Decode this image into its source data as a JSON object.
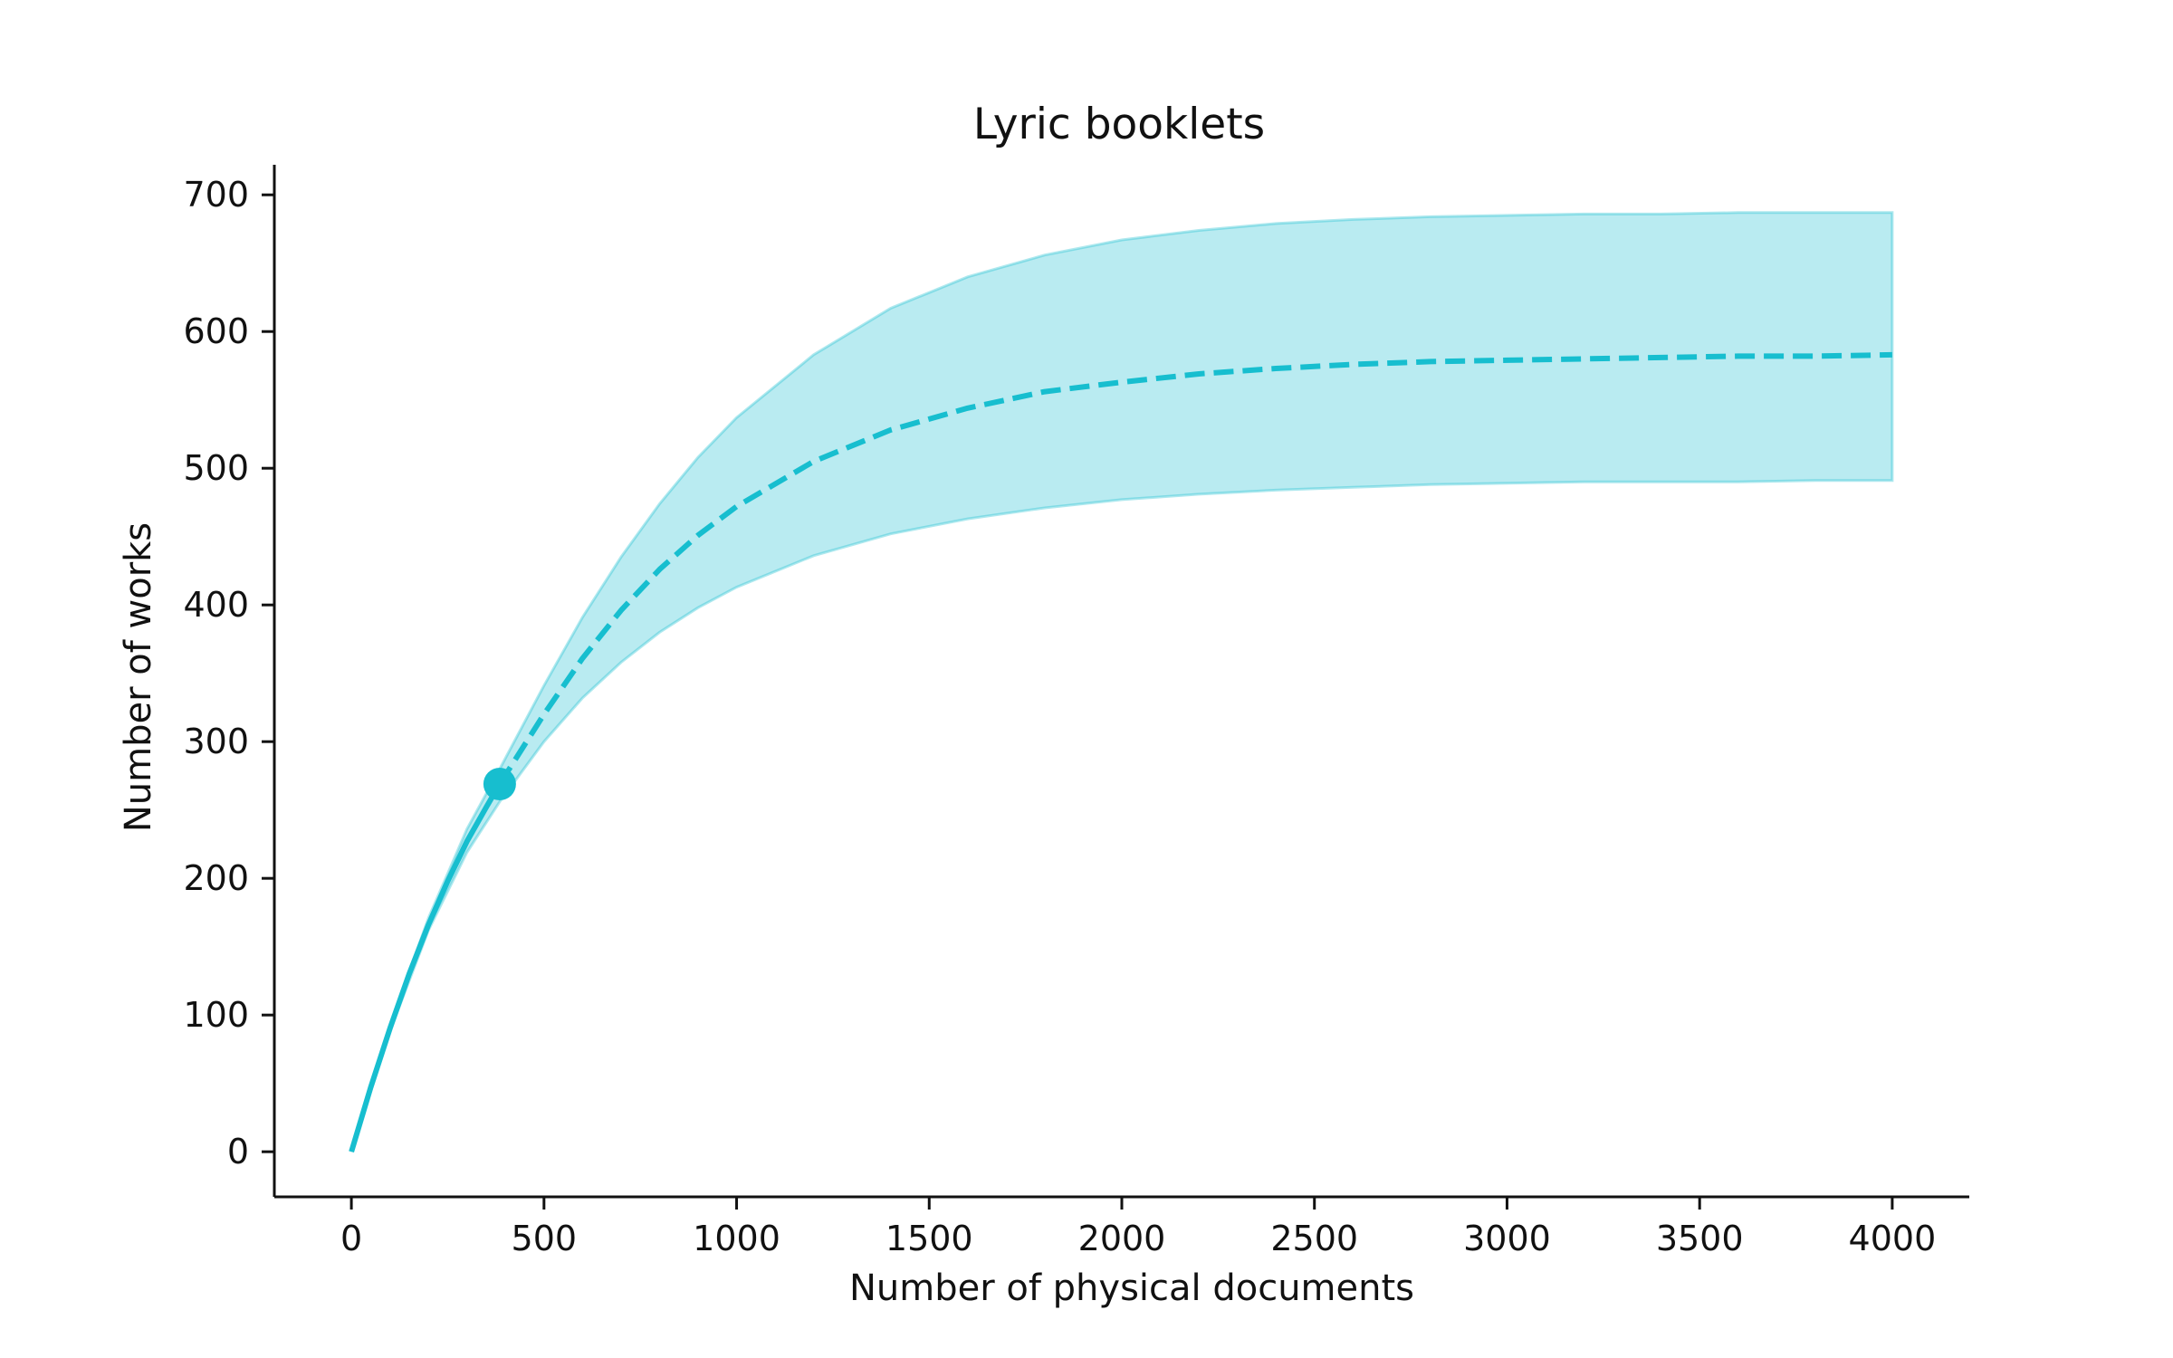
{
  "chart_data": {
    "type": "line",
    "title": "Lyric booklets",
    "xlabel": "Number of physical documents",
    "ylabel": "Number of works",
    "xlim": [
      -200,
      4200
    ],
    "ylim": [
      -33,
      722
    ],
    "xticks": [
      0,
      500,
      1000,
      1500,
      2000,
      2500,
      3000,
      3500,
      4000
    ],
    "yticks": [
      0,
      100,
      200,
      300,
      400,
      500,
      600,
      700
    ],
    "xtick_labels": [
      "0",
      "500",
      "1000",
      "1500",
      "2000",
      "2500",
      "3000",
      "3500",
      "4000"
    ],
    "ytick_labels": [
      "0",
      "100",
      "200",
      "300",
      "400",
      "500",
      "600",
      "700"
    ],
    "grid": false,
    "spines": [
      "left",
      "bottom"
    ],
    "color": "#17becf",
    "series": [
      {
        "kind": "interpolated",
        "style": "solid",
        "x": [
          0,
          50,
          100,
          150,
          200,
          250,
          300,
          350,
          385
        ],
        "y": [
          0,
          47,
          90,
          130,
          166,
          198,
          227,
          252,
          269
        ]
      },
      {
        "kind": "extrapolated",
        "style": "dashed",
        "x": [
          385,
          500,
          600,
          700,
          800,
          900,
          1000,
          1200,
          1400,
          1600,
          1800,
          2000,
          2200,
          2400,
          2600,
          2800,
          3000,
          3200,
          3400,
          3600,
          3800,
          4000
        ],
        "y": [
          269,
          320,
          361,
          396,
          426,
          451,
          472,
          505,
          528,
          544,
          556,
          563,
          569,
          573,
          576,
          578,
          579,
          580,
          581,
          582,
          582,
          583
        ]
      }
    ],
    "observed_point": {
      "x": 385,
      "y": 269
    },
    "confidence_band": {
      "x": [
        0,
        100,
        200,
        300,
        385,
        500,
        600,
        700,
        800,
        900,
        1000,
        1200,
        1400,
        1600,
        1800,
        2000,
        2200,
        2400,
        2600,
        2800,
        3000,
        3200,
        3400,
        3600,
        3800,
        4000
      ],
      "lower": [
        0,
        88,
        162,
        219,
        256,
        300,
        332,
        358,
        380,
        398,
        413,
        436,
        452,
        463,
        471,
        477,
        481,
        484,
        486,
        488,
        489,
        490,
        490,
        490,
        491,
        491
      ],
      "upper": [
        0,
        92,
        171,
        236,
        280,
        341,
        391,
        435,
        474,
        508,
        537,
        583,
        617,
        640,
        656,
        667,
        674,
        679,
        682,
        684,
        685,
        686,
        686,
        687,
        687,
        687
      ]
    }
  }
}
